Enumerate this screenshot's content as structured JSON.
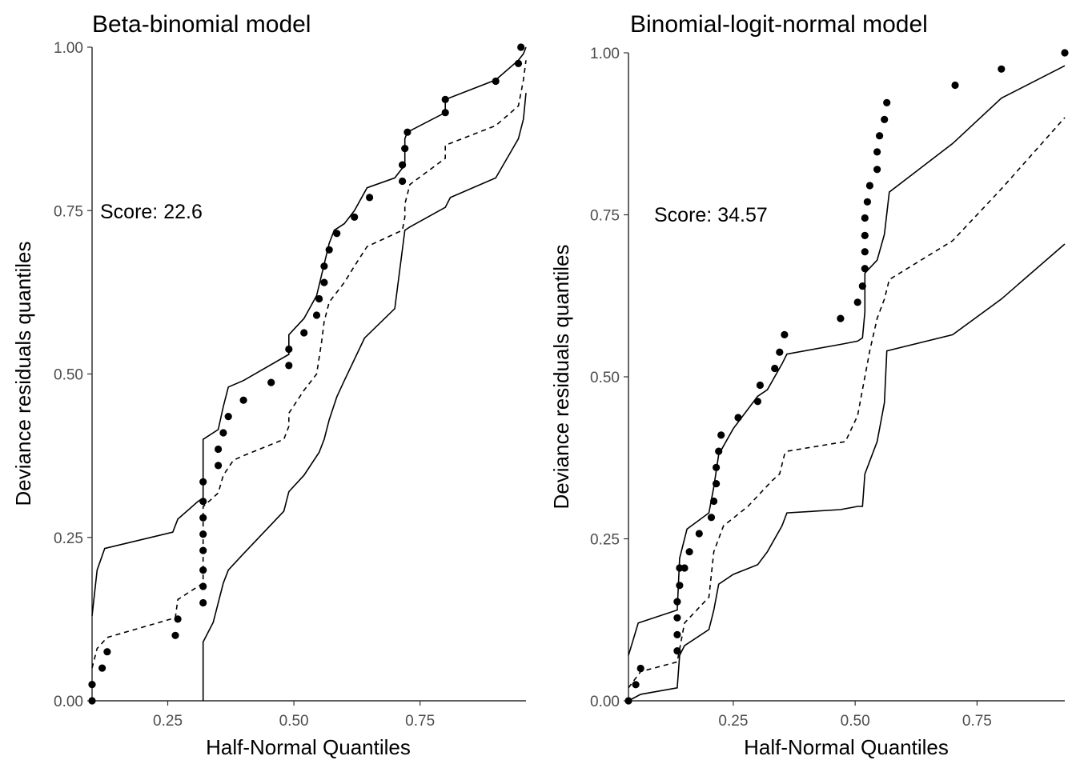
{
  "chart_data": [
    {
      "type": "scatter",
      "title": "Beta-binomial model",
      "xlabel": "Half-Normal Quantiles",
      "ylabel": "Deviance residuals quantiles",
      "annotation": "Score: 22.6",
      "xlim": [
        0.1,
        0.96
      ],
      "ylim": [
        0.0,
        1.0
      ],
      "xticks": [
        0.25,
        0.5,
        0.75
      ],
      "xtick_labels": [
        "0.25",
        "0.50",
        "0.75"
      ],
      "yticks": [
        0.0,
        0.25,
        0.5,
        0.75,
        1.0
      ],
      "ytick_labels": [
        "0.00",
        "0.25",
        "0.50",
        "0.75",
        "1.00"
      ],
      "grid": false,
      "series": [
        {
          "role": "points",
          "x": [
            0.1,
            0.1,
            0.12,
            0.13,
            0.265,
            0.27,
            0.32,
            0.32,
            0.32,
            0.32,
            0.32,
            0.32,
            0.32,
            0.32,
            0.35,
            0.35,
            0.36,
            0.37,
            0.4,
            0.455,
            0.49,
            0.49,
            0.52,
            0.545,
            0.55,
            0.56,
            0.56,
            0.57,
            0.585,
            0.62,
            0.65,
            0.715,
            0.715,
            0.72,
            0.725,
            0.8,
            0.8,
            0.9,
            0.945,
            0.95
          ],
          "y": [
            0.0,
            0.025,
            0.05,
            0.075,
            0.1,
            0.125,
            0.15,
            0.175,
            0.2,
            0.23,
            0.255,
            0.28,
            0.305,
            0.335,
            0.36,
            0.385,
            0.41,
            0.435,
            0.46,
            0.487,
            0.513,
            0.538,
            0.563,
            0.59,
            0.615,
            0.64,
            0.665,
            0.69,
            0.715,
            0.74,
            0.77,
            0.795,
            0.82,
            0.845,
            0.87,
            0.9,
            0.92,
            0.948,
            0.975,
            1.0
          ]
        },
        {
          "role": "upper",
          "x": [
            0.1,
            0.11,
            0.125,
            0.26,
            0.27,
            0.31,
            0.32,
            0.32,
            0.35,
            0.36,
            0.37,
            0.4,
            0.49,
            0.49,
            0.52,
            0.545,
            0.57,
            0.58,
            0.6,
            0.62,
            0.645,
            0.7,
            0.72,
            0.72,
            0.72,
            0.725,
            0.8,
            0.8,
            0.9,
            0.945,
            0.955,
            0.96
          ],
          "y": [
            0.13,
            0.2,
            0.233,
            0.258,
            0.278,
            0.305,
            0.31,
            0.4,
            0.415,
            0.45,
            0.48,
            0.49,
            0.53,
            0.56,
            0.585,
            0.62,
            0.7,
            0.72,
            0.73,
            0.75,
            0.785,
            0.8,
            0.82,
            0.84,
            0.86,
            0.87,
            0.9,
            0.92,
            0.95,
            0.98,
            0.99,
            1.0
          ]
        },
        {
          "role": "median",
          "x": [
            0.1,
            0.11,
            0.13,
            0.265,
            0.27,
            0.32,
            0.32,
            0.35,
            0.36,
            0.38,
            0.4,
            0.48,
            0.49,
            0.49,
            0.52,
            0.545,
            0.555,
            0.56,
            0.57,
            0.6,
            0.62,
            0.645,
            0.715,
            0.72,
            0.72,
            0.73,
            0.8,
            0.8,
            0.9,
            0.945,
            0.955,
            0.96
          ],
          "y": [
            0.05,
            0.08,
            0.097,
            0.127,
            0.155,
            0.18,
            0.297,
            0.318,
            0.345,
            0.368,
            0.375,
            0.4,
            0.42,
            0.44,
            0.475,
            0.5,
            0.55,
            0.58,
            0.61,
            0.64,
            0.665,
            0.695,
            0.72,
            0.74,
            0.76,
            0.79,
            0.83,
            0.85,
            0.88,
            0.91,
            0.95,
            0.98
          ]
        },
        {
          "role": "lower",
          "x": [
            0.32,
            0.32,
            0.34,
            0.36,
            0.37,
            0.4,
            0.48,
            0.49,
            0.52,
            0.55,
            0.56,
            0.57,
            0.585,
            0.6,
            0.64,
            0.7,
            0.72,
            0.73,
            0.8,
            0.81,
            0.9,
            0.945,
            0.955,
            0.96
          ],
          "y": [
            0.0,
            0.09,
            0.12,
            0.18,
            0.2,
            0.225,
            0.29,
            0.32,
            0.345,
            0.38,
            0.4,
            0.43,
            0.465,
            0.49,
            0.555,
            0.6,
            0.72,
            0.725,
            0.755,
            0.77,
            0.8,
            0.86,
            0.89,
            0.93
          ]
        }
      ]
    },
    {
      "type": "scatter",
      "title": "Binomial-logit-normal model",
      "xlabel": "Half-Normal Quantiles",
      "ylabel": "Deviance residuals quantiles",
      "annotation": "Score: 34.57",
      "xlim": [
        0.035,
        0.93
      ],
      "ylim": [
        0.0,
        1.0
      ],
      "xticks": [
        0.25,
        0.5,
        0.75
      ],
      "xtick_labels": [
        "0.25",
        "0.50",
        "0.75"
      ],
      "yticks": [
        0.0,
        0.25,
        0.5,
        0.75,
        1.0
      ],
      "ytick_labels": [
        "0.00",
        "0.25",
        "0.50",
        "0.75",
        "1.00"
      ],
      "grid": false,
      "series": [
        {
          "role": "points",
          "x": [
            0.035,
            0.05,
            0.06,
            0.135,
            0.135,
            0.135,
            0.135,
            0.14,
            0.14,
            0.15,
            0.16,
            0.18,
            0.205,
            0.21,
            0.215,
            0.215,
            0.22,
            0.225,
            0.26,
            0.3,
            0.305,
            0.335,
            0.345,
            0.355,
            0.47,
            0.505,
            0.515,
            0.52,
            0.52,
            0.52,
            0.52,
            0.525,
            0.53,
            0.545,
            0.545,
            0.55,
            0.56,
            0.565,
            0.705,
            0.8,
            0.93
          ],
          "y": [
            0.0,
            0.025,
            0.05,
            0.077,
            0.102,
            0.128,
            0.153,
            0.178,
            0.205,
            0.205,
            0.23,
            0.258,
            0.283,
            0.308,
            0.335,
            0.36,
            0.385,
            0.41,
            0.437,
            0.462,
            0.487,
            0.513,
            0.538,
            0.565,
            0.59,
            0.615,
            0.64,
            0.667,
            0.693,
            0.718,
            0.745,
            0.77,
            0.795,
            0.82,
            0.847,
            0.872,
            0.897,
            0.923,
            0.95,
            0.975,
            1.0
          ]
        },
        {
          "role": "upper",
          "x": [
            0.035,
            0.055,
            0.135,
            0.14,
            0.155,
            0.2,
            0.21,
            0.22,
            0.25,
            0.3,
            0.32,
            0.35,
            0.36,
            0.47,
            0.505,
            0.515,
            0.52,
            0.52,
            0.545,
            0.56,
            0.57,
            0.7,
            0.8,
            0.93
          ],
          "y": [
            0.07,
            0.12,
            0.14,
            0.22,
            0.265,
            0.29,
            0.33,
            0.38,
            0.42,
            0.47,
            0.48,
            0.52,
            0.535,
            0.55,
            0.555,
            0.56,
            0.6,
            0.66,
            0.68,
            0.72,
            0.785,
            0.86,
            0.93,
            0.98
          ]
        },
        {
          "role": "median",
          "x": [
            0.035,
            0.06,
            0.135,
            0.15,
            0.2,
            0.21,
            0.23,
            0.28,
            0.33,
            0.345,
            0.355,
            0.36,
            0.48,
            0.505,
            0.52,
            0.53,
            0.545,
            0.56,
            0.57,
            0.7,
            0.8,
            0.93
          ],
          "y": [
            0.02,
            0.045,
            0.06,
            0.12,
            0.16,
            0.23,
            0.27,
            0.3,
            0.34,
            0.35,
            0.38,
            0.385,
            0.4,
            0.44,
            0.5,
            0.54,
            0.59,
            0.62,
            0.65,
            0.71,
            0.79,
            0.9
          ]
        },
        {
          "role": "lower",
          "x": [
            0.035,
            0.06,
            0.135,
            0.14,
            0.15,
            0.2,
            0.21,
            0.22,
            0.25,
            0.3,
            0.32,
            0.35,
            0.36,
            0.47,
            0.505,
            0.515,
            0.52,
            0.53,
            0.545,
            0.56,
            0.565,
            0.7,
            0.8,
            0.93
          ],
          "y": [
            0.0,
            0.01,
            0.02,
            0.07,
            0.085,
            0.11,
            0.14,
            0.18,
            0.195,
            0.21,
            0.23,
            0.27,
            0.29,
            0.295,
            0.3,
            0.3,
            0.35,
            0.37,
            0.4,
            0.46,
            0.54,
            0.565,
            0.62,
            0.705
          ]
        }
      ]
    }
  ]
}
